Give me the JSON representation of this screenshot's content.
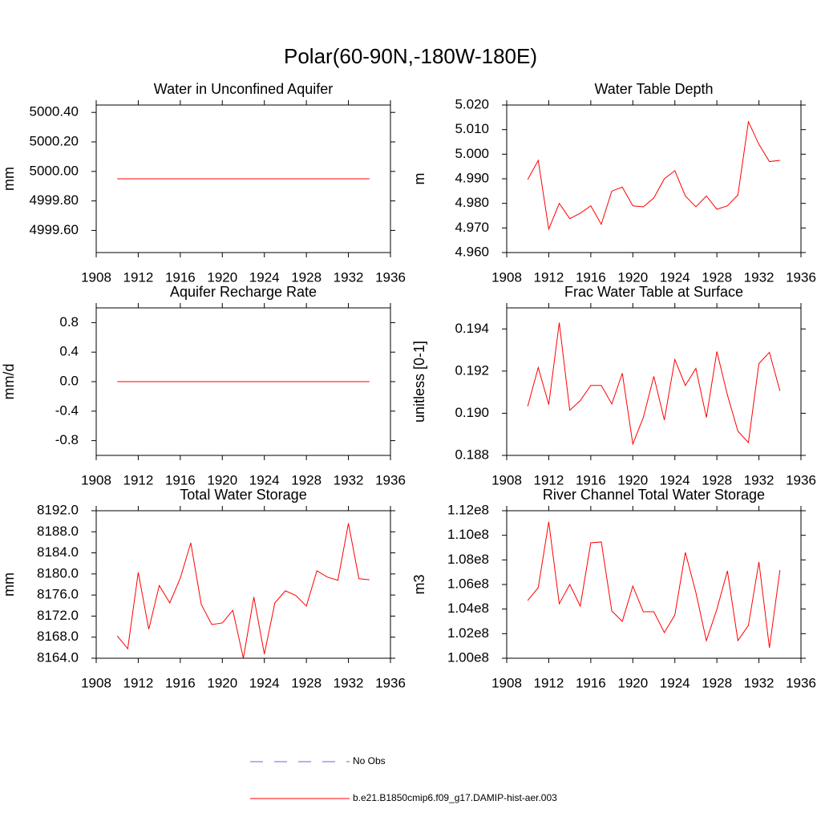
{
  "title": "Polar(60-90N,-180W-180E)",
  "legend": [
    {
      "name": "No Obs",
      "color": "#5b6ee0",
      "dashed": true
    },
    {
      "name": "b.e21.B1850cmip6.f09_g17.DAMIP-hist-aer.003",
      "color": "#ff0000",
      "dashed": false
    }
  ],
  "chart_data": [
    {
      "type": "line",
      "title": "Water in Unconfined Aquifer",
      "y_label": "mm",
      "x": [
        1910,
        1911,
        1912,
        1913,
        1914,
        1915,
        1916,
        1917,
        1918,
        1919,
        1920,
        1921,
        1922,
        1923,
        1924,
        1925,
        1926,
        1927,
        1928,
        1929,
        1930,
        1931,
        1932,
        1933,
        1934
      ],
      "xlim": [
        1908,
        1936
      ],
      "xticks": [
        1908,
        1912,
        1916,
        1920,
        1924,
        1928,
        1932,
        1936
      ],
      "ylim": [
        4999.45,
        5000.45
      ],
      "yticks": [
        {
          "value": 4999.6,
          "label": "4999.60"
        },
        {
          "value": 4999.8,
          "label": "4999.80"
        },
        {
          "value": 5000,
          "label": "5000.00"
        },
        {
          "value": 5000.2,
          "label": "5000.20"
        },
        {
          "value": 5000.4,
          "label": "5000.40"
        }
      ],
      "series": [
        {
          "color": "#ff0000",
          "values": [
            4999.95,
            4999.95,
            4999.95,
            4999.95,
            4999.95,
            4999.95,
            4999.95,
            4999.95,
            4999.95,
            4999.95,
            4999.95,
            4999.95,
            4999.95,
            4999.95,
            4999.95,
            4999.95,
            4999.95,
            4999.95,
            4999.95,
            4999.95,
            4999.95,
            4999.95,
            4999.95,
            4999.95,
            4999.95
          ]
        }
      ]
    },
    {
      "type": "line",
      "title": "Water Table Depth",
      "y_label": "m",
      "x": [
        1910,
        1911,
        1912,
        1913,
        1914,
        1915,
        1916,
        1917,
        1918,
        1919,
        1920,
        1921,
        1922,
        1923,
        1924,
        1925,
        1926,
        1927,
        1928,
        1929,
        1930,
        1931,
        1932,
        1933,
        1934
      ],
      "xlim": [
        1908,
        1936
      ],
      "xticks": [
        1908,
        1912,
        1916,
        1920,
        1924,
        1928,
        1932,
        1936
      ],
      "ylim": [
        4.96,
        5.02
      ],
      "yticks": [
        {
          "value": 4.96,
          "label": "4.960"
        },
        {
          "value": 4.97,
          "label": "4.970"
        },
        {
          "value": 4.98,
          "label": "4.980"
        },
        {
          "value": 4.99,
          "label": "4.990"
        },
        {
          "value": 5,
          "label": "5.000"
        },
        {
          "value": 5.01,
          "label": "5.010"
        },
        {
          "value": 5.02,
          "label": "5.020"
        }
      ],
      "series": [
        {
          "color": "#ff0000",
          "values": [
            4.9897,
            4.9975,
            4.9695,
            4.98,
            4.9738,
            4.976,
            4.979,
            4.9715,
            4.985,
            4.9866,
            4.979,
            4.9786,
            4.9822,
            4.99,
            4.9933,
            4.983,
            4.9786,
            4.983,
            4.9776,
            4.979,
            4.9834,
            5.0132,
            5.004,
            4.997,
            4.9975
          ]
        }
      ]
    },
    {
      "type": "line",
      "title": "Aquifer Recharge Rate",
      "y_label": "mm/d",
      "x": [
        1910,
        1911,
        1912,
        1913,
        1914,
        1915,
        1916,
        1917,
        1918,
        1919,
        1920,
        1921,
        1922,
        1923,
        1924,
        1925,
        1926,
        1927,
        1928,
        1929,
        1930,
        1931,
        1932,
        1933,
        1934
      ],
      "xlim": [
        1908,
        1936
      ],
      "xticks": [
        1908,
        1912,
        1916,
        1920,
        1924,
        1928,
        1932,
        1936
      ],
      "ylim": [
        -1,
        1
      ],
      "yticks": [
        -0.8,
        -0.4,
        {
          "value": 0,
          "label": "0.0"
        },
        0.4,
        0.8
      ],
      "series": [
        {
          "color": "#ff0000",
          "values": [
            0,
            0,
            0,
            0,
            0,
            0,
            0,
            0,
            0,
            0,
            0,
            0,
            0,
            0,
            0,
            0,
            0,
            0,
            0,
            0,
            0,
            0,
            0,
            0,
            0
          ]
        }
      ]
    },
    {
      "type": "line",
      "title": "Frac Water Table at Surface",
      "y_label": "unitless [0-1]",
      "x": [
        1910,
        1911,
        1912,
        1913,
        1914,
        1915,
        1916,
        1917,
        1918,
        1919,
        1920,
        1921,
        1922,
        1923,
        1924,
        1925,
        1926,
        1927,
        1928,
        1929,
        1930,
        1931,
        1932,
        1933,
        1934
      ],
      "xlim": [
        1908,
        1936
      ],
      "xticks": [
        1908,
        1912,
        1916,
        1920,
        1924,
        1928,
        1932,
        1936
      ],
      "ylim": [
        0.188,
        0.195
      ],
      "yticks": [
        0.188,
        {
          "value": 0.19,
          "label": "0.190"
        },
        0.192,
        0.194
      ],
      "series": [
        {
          "color": "#ff0000",
          "values": [
            0.19033,
            0.19217,
            0.19041,
            0.1943,
            0.19014,
            0.1906,
            0.19132,
            0.19132,
            0.19044,
            0.1919,
            0.18854,
            0.1898,
            0.19175,
            0.18968,
            0.19255,
            0.19132,
            0.19213,
            0.1898,
            0.19293,
            0.19087,
            0.18915,
            0.18861,
            0.19236,
            0.19289,
            0.19106
          ]
        }
      ]
    },
    {
      "type": "line",
      "title": "Total Water Storage",
      "y_label": "mm",
      "x": [
        1910,
        1911,
        1912,
        1913,
        1914,
        1915,
        1916,
        1917,
        1918,
        1919,
        1920,
        1921,
        1922,
        1923,
        1924,
        1925,
        1926,
        1927,
        1928,
        1929,
        1930,
        1931,
        1932,
        1933,
        1934
      ],
      "xlim": [
        1908,
        1936
      ],
      "xticks": [
        1908,
        1912,
        1916,
        1920,
        1924,
        1928,
        1932,
        1936
      ],
      "ylim": [
        8164,
        8192
      ],
      "yticks": [
        {
          "value": 8164,
          "label": "8164.0"
        },
        {
          "value": 8168,
          "label": "8168.0"
        },
        {
          "value": 8172,
          "label": "8172.0"
        },
        {
          "value": 8176,
          "label": "8176.0"
        },
        {
          "value": 8180,
          "label": "8180.0"
        },
        {
          "value": 8184,
          "label": "8184.0"
        },
        {
          "value": 8188,
          "label": "8188.0"
        },
        {
          "value": 8192,
          "label": "8192.0"
        }
      ],
      "series": [
        {
          "color": "#ff0000",
          "values": [
            8168.26,
            8165.8,
            8180.3,
            8169.5,
            8177.8,
            8174.5,
            8179.2,
            8185.9,
            8174.2,
            8170.4,
            8170.7,
            8173.1,
            8164.0,
            8175.6,
            8164.8,
            8174.5,
            8176.8,
            8175.9,
            8173.9,
            8180.6,
            8179.4,
            8178.8,
            8189.6,
            8179.1,
            8178.9
          ]
        }
      ]
    },
    {
      "type": "line",
      "title": "River Channel Total Water Storage",
      "y_label": "m3",
      "x": [
        1910,
        1911,
        1912,
        1913,
        1914,
        1915,
        1916,
        1917,
        1918,
        1919,
        1920,
        1921,
        1922,
        1923,
        1924,
        1925,
        1926,
        1927,
        1928,
        1929,
        1930,
        1931,
        1932,
        1933,
        1934
      ],
      "xlim": [
        1908,
        1936
      ],
      "xticks": [
        1908,
        1912,
        1916,
        1920,
        1924,
        1928,
        1932,
        1936
      ],
      "ylim": [
        100000000,
        112000000
      ],
      "yticks": [
        {
          "value": 100000000,
          "label": "1.00e8"
        },
        {
          "value": 102000000,
          "label": "1.02e8"
        },
        {
          "value": 104000000,
          "label": "1.04e8"
        },
        {
          "value": 106000000,
          "label": "1.06e8"
        },
        {
          "value": 108000000,
          "label": "1.08e8"
        },
        {
          "value": 110000000,
          "label": "1.10e8"
        },
        {
          "value": 112000000,
          "label": "1.12e8"
        }
      ],
      "series": [
        {
          "color": "#ff0000",
          "values": [
            104700000,
            105740000,
            111090000,
            104430000,
            106000000,
            104240000,
            109390000,
            109460000,
            103850000,
            103000000,
            105870000,
            103780000,
            103780000,
            102090000,
            103520000,
            108610000,
            105350000,
            101430000,
            103980000,
            107110000,
            101430000,
            102670000,
            107830000,
            100850000,
            107170000
          ]
        }
      ]
    }
  ]
}
